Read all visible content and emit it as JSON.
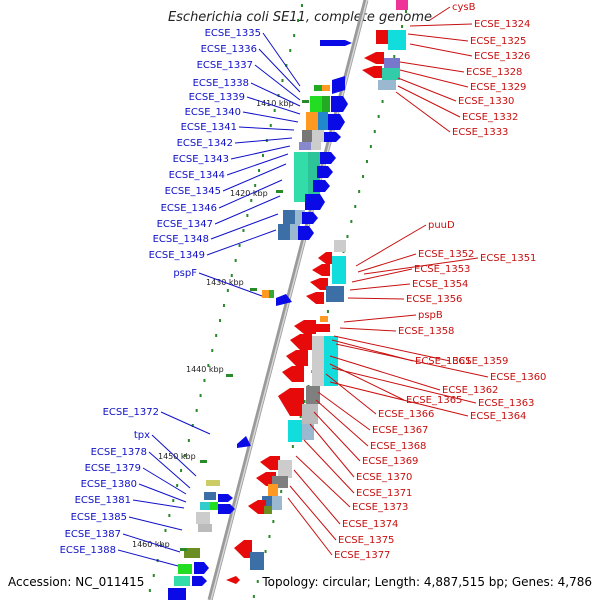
{
  "title": "Escherichia coli SE11, complete genome",
  "footer": {
    "accession": "Accession: NC_011415",
    "summary": "Topology: circular; Length: 4,887,515 bp; Genes: 4,786"
  },
  "ticks": [
    "1410 kbp",
    "1420 kbp",
    "1430 kbp",
    "1440 kbp",
    "1450 kbp",
    "1460 kbp"
  ],
  "left_labels": [
    "ECSE_1335",
    "ECSE_1336",
    "ECSE_1337",
    "ECSE_1338",
    "ECSE_1339",
    "ECSE_1340",
    "ECSE_1341",
    "ECSE_1342",
    "ECSE_1343",
    "ECSE_1344",
    "ECSE_1345",
    "ECSE_1346",
    "ECSE_1347",
    "ECSE_1348",
    "ECSE_1349",
    "pspF",
    "ECSE_1372",
    "tpx",
    "ECSE_1378",
    "ECSE_1379",
    "ECSE_1380",
    "ECSE_1381",
    "ECSE_1385",
    "ECSE_1387",
    "ECSE_1388"
  ],
  "right_labels": [
    "cysB",
    "ECSE_1324",
    "ECSE_1325",
    "ECSE_1326",
    "ECSE_1328",
    "ECSE_1329",
    "ECSE_1330",
    "ECSE_1332",
    "ECSE_1333",
    "puuD",
    "ECSE_1352",
    "ECSE_1351",
    "ECSE_1353",
    "ECSE_1354",
    "ECSE_1356",
    "pspB",
    "ECSE_1358",
    "ECSE_1361",
    "ECSE_1359",
    "ECSE_1360",
    "ECSE_1362",
    "ECSE_1365",
    "ECSE_1363",
    "ECSE_1366",
    "ECSE_1364",
    "ECSE_1367",
    "ECSE_1368",
    "ECSE_1369",
    "ECSE_1370",
    "ECSE_1371",
    "ECSE_1373",
    "ECSE_1374",
    "ECSE_1375",
    "ECSE_1377"
  ],
  "colors": {
    "forward": "#0a0ae6",
    "reverse": "#e60a0a",
    "backbone": "#8c8c8c",
    "label_left": "#1010c8",
    "label_right": "#c81010",
    "dots": "#2a8a2a"
  }
}
